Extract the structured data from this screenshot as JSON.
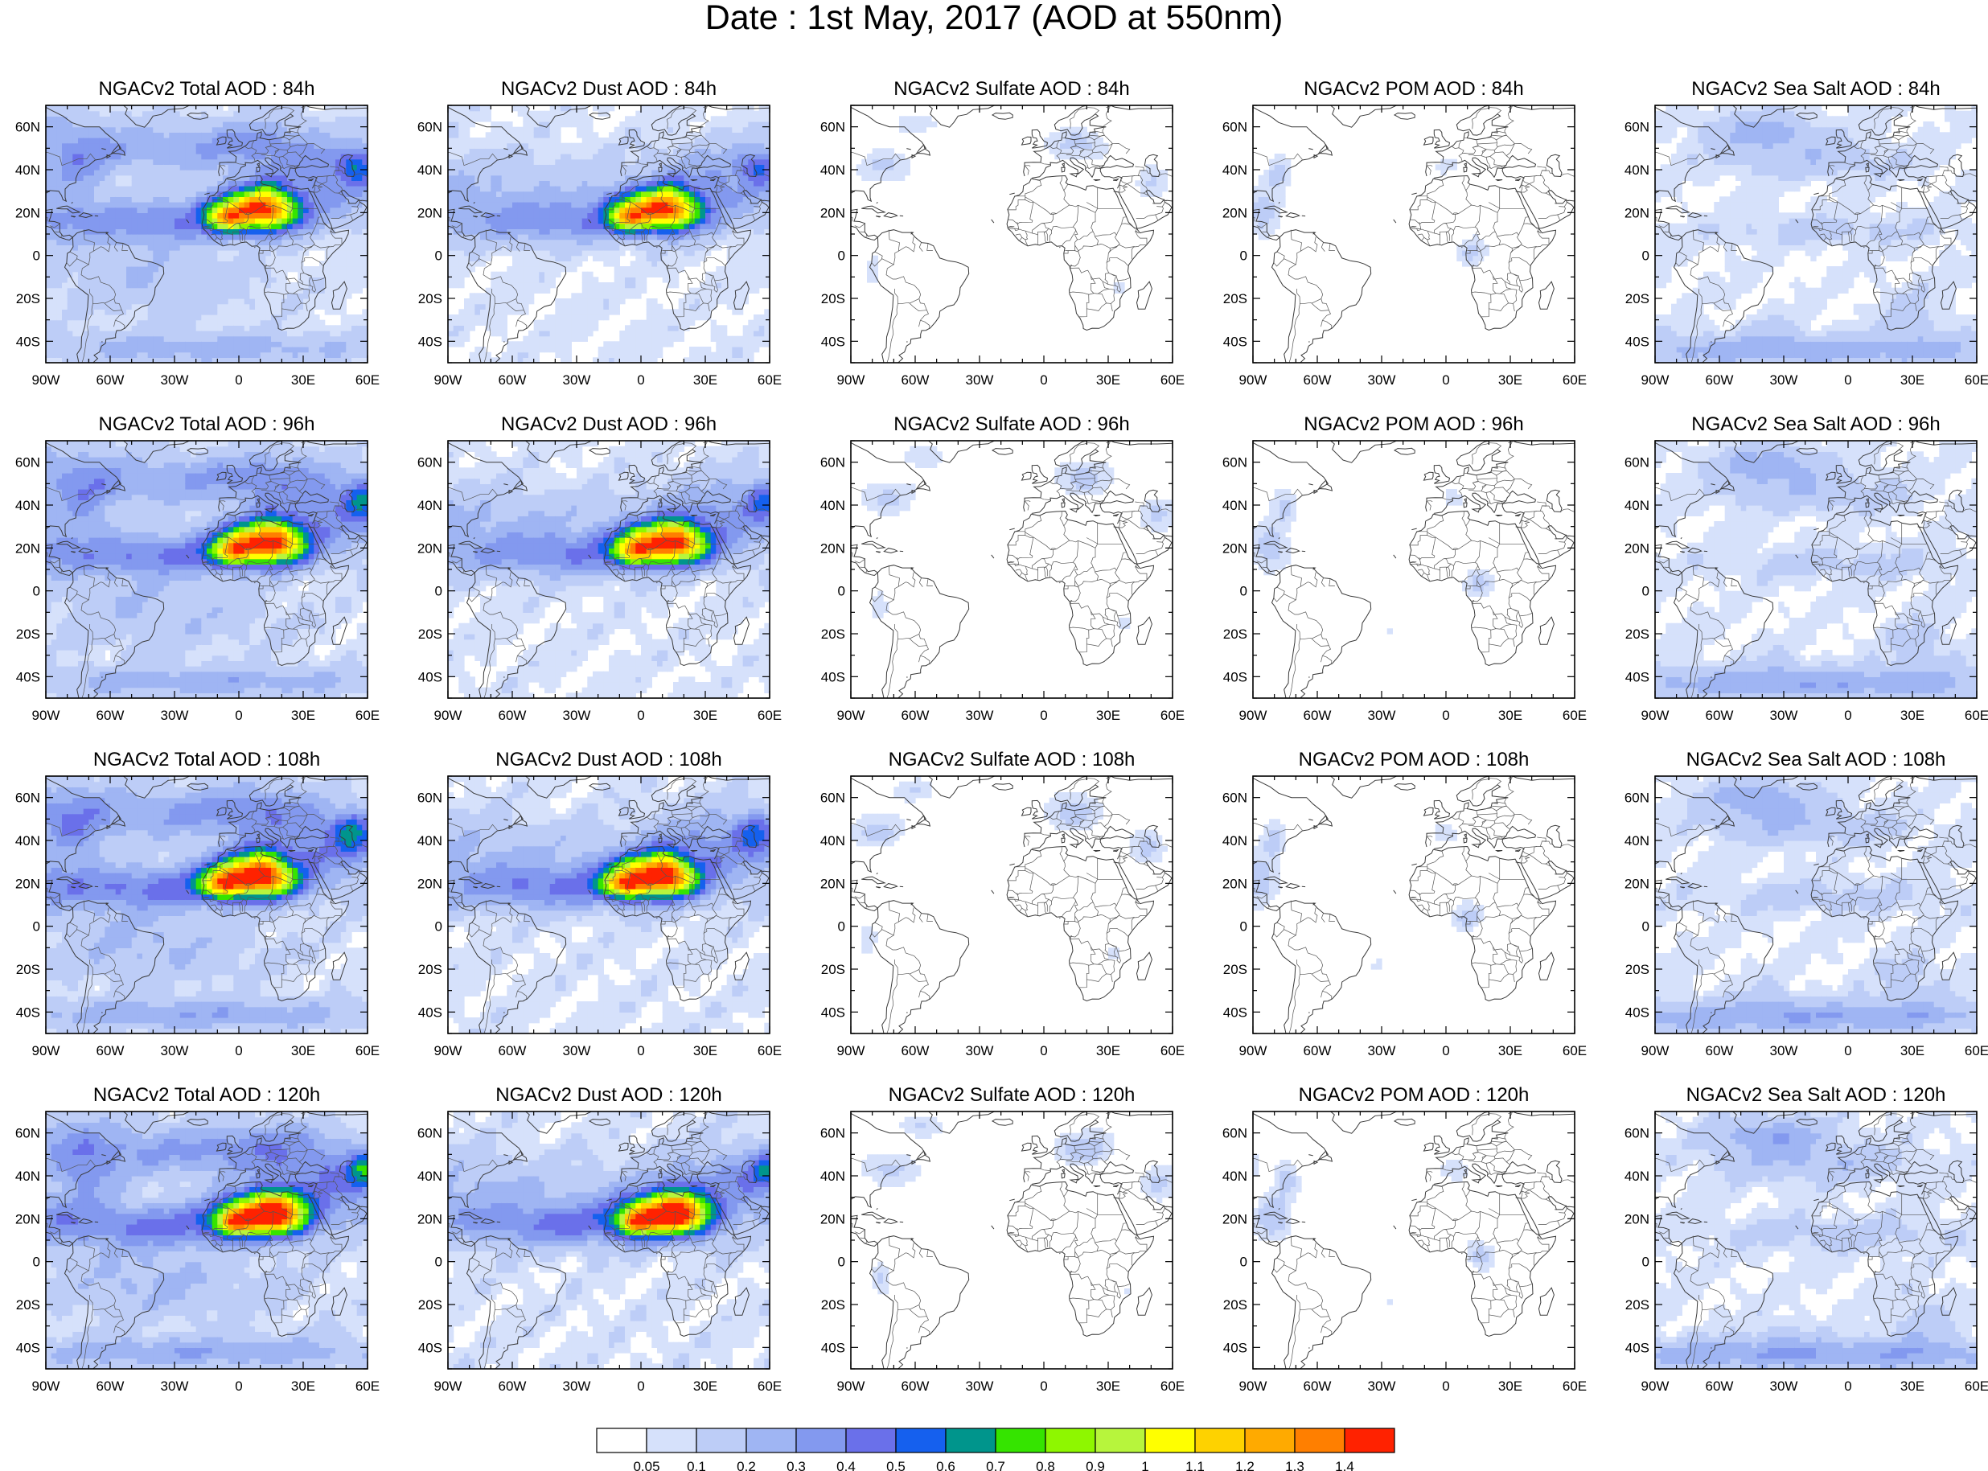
{
  "title": "Date : 1st May, 2017 (AOD at 550nm)",
  "panel_titles": [
    [
      "NGACv2 Total AOD : 84h",
      "NGACv2 Dust AOD : 84h",
      "NGACv2 Sulfate AOD : 84h",
      "NGACv2 POM AOD : 84h",
      "NGACv2 Sea Salt AOD : 84h"
    ],
    [
      "NGACv2 Total AOD : 96h",
      "NGACv2 Dust AOD : 96h",
      "NGACv2 Sulfate AOD : 96h",
      "NGACv2 POM AOD : 96h",
      "NGACv2 Sea Salt AOD : 96h"
    ],
    [
      "NGACv2 Total AOD : 108h",
      "NGACv2 Dust AOD : 108h",
      "NGACv2 Sulfate AOD : 108h",
      "NGACv2 POM AOD : 108h",
      "NGACv2 Sea Salt AOD : 108h"
    ],
    [
      "NGACv2 Total AOD : 120h",
      "NGACv2 Dust AOD : 120h",
      "NGACv2 Sulfate AOD : 120h",
      "NGACv2 POM AOD : 120h",
      "NGACv2 Sea Salt  AOD : 120h"
    ]
  ],
  "map_extent": {
    "lon": [
      -90,
      60
    ],
    "lat": [
      -50,
      70
    ]
  },
  "lon_ticks": [
    {
      "value": -90,
      "label": "90W"
    },
    {
      "value": -60,
      "label": "60W"
    },
    {
      "value": -30,
      "label": "30W"
    },
    {
      "value": 0,
      "label": "0"
    },
    {
      "value": 30,
      "label": "30E"
    },
    {
      "value": 60,
      "label": "60E"
    }
  ],
  "lat_ticks": [
    {
      "value": 60,
      "label": "60N"
    },
    {
      "value": 40,
      "label": "40N"
    },
    {
      "value": 20,
      "label": "20N"
    },
    {
      "value": 0,
      "label": "0"
    },
    {
      "value": -20,
      "label": "20S"
    },
    {
      "value": -40,
      "label": "40S"
    }
  ],
  "colorbar": {
    "colors": [
      "#ffffff",
      "#d6e1fb",
      "#bdcdf7",
      "#9fb5f3",
      "#8399ef",
      "#6a70ea",
      "#1560ee",
      "#00958c",
      "#35e400",
      "#8ef700",
      "#b7f53c",
      "#ffff00",
      "#fed200",
      "#ffaa00",
      "#ff7f00",
      "#ff2200"
    ],
    "labels": [
      "0.05",
      "0.1",
      "0.2",
      "0.3",
      "0.4",
      "0.5",
      "0.6",
      "0.7",
      "0.8",
      "0.9",
      "1",
      "1.1",
      "1.2",
      "1.3",
      "1.4"
    ]
  }
}
